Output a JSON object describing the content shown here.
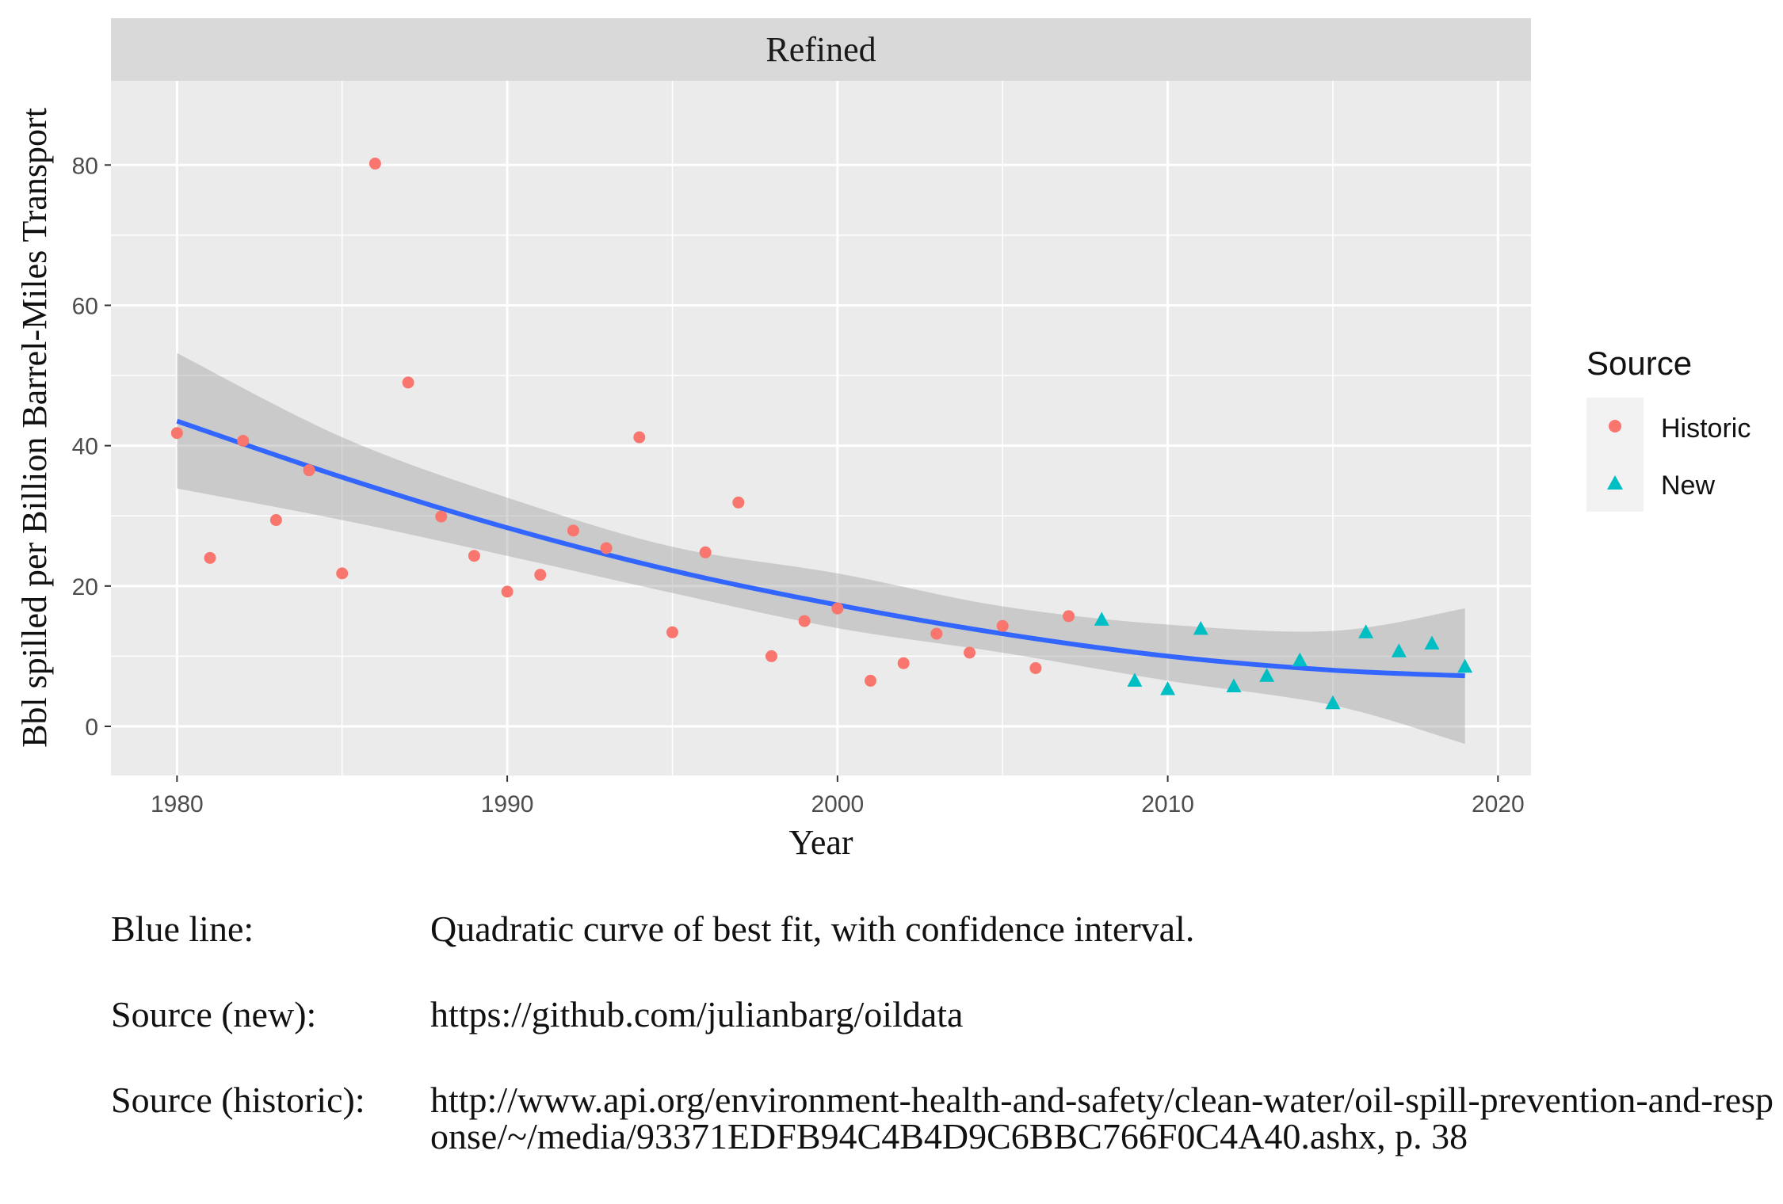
{
  "chart_data": {
    "type": "scatter",
    "facet_title": "Refined",
    "xlabel": "Year",
    "ylabel": "Bbl spilled per Billion Barrel-Miles Transport",
    "xlim": [
      1978,
      2021
    ],
    "ylim": [
      -7,
      92
    ],
    "x_ticks": [
      1980,
      1990,
      2000,
      2010,
      2020
    ],
    "y_ticks": [
      0,
      20,
      40,
      60,
      80
    ],
    "grid": true,
    "legend": {
      "title": "Source",
      "position": "right",
      "entries": [
        {
          "name": "Historic",
          "shape": "circle",
          "color": "#F8766D"
        },
        {
          "name": "New",
          "shape": "triangle",
          "color": "#00BFC4"
        }
      ]
    },
    "series": [
      {
        "name": "Historic",
        "shape": "circle",
        "color": "#F8766D",
        "x": [
          1980,
          1981,
          1982,
          1983,
          1984,
          1985,
          1986,
          1987,
          1988,
          1989,
          1990,
          1991,
          1992,
          1993,
          1994,
          1995,
          1996,
          1997,
          1998,
          1999,
          2000,
          2001,
          2002,
          2003,
          2004,
          2005,
          2006,
          2007
        ],
        "y": [
          41.8,
          24.0,
          40.7,
          29.4,
          36.5,
          21.8,
          80.2,
          49.0,
          29.9,
          24.3,
          19.2,
          21.6,
          27.9,
          25.4,
          41.2,
          13.4,
          24.8,
          31.9,
          10.0,
          15.0,
          16.8,
          6.5,
          9.0,
          13.2,
          10.5,
          14.3,
          8.3,
          15.7
        ]
      },
      {
        "name": "New",
        "shape": "triangle",
        "color": "#00BFC4",
        "x": [
          2008,
          2009,
          2010,
          2011,
          2012,
          2013,
          2014,
          2015,
          2016,
          2017,
          2018,
          2019
        ],
        "y": [
          15.2,
          6.5,
          5.3,
          13.9,
          5.7,
          7.2,
          9.4,
          3.3,
          13.4,
          10.7,
          11.8,
          8.5
        ]
      }
    ],
    "fit": {
      "name": "Blue line",
      "type": "quadratic",
      "color": "#3366FF",
      "band_color": "#999999",
      "x": [
        1980,
        1985,
        1990,
        1995,
        2000,
        2005,
        2010,
        2015,
        2019
      ],
      "y": [
        43.5,
        35.5,
        28.3,
        22.2,
        17.3,
        13.2,
        10.0,
        8.0,
        7.2
      ],
      "lower": [
        33.9,
        29.4,
        24.3,
        19.0,
        14.0,
        10.5,
        6.5,
        3.0,
        -2.5
      ],
      "upper": [
        53.2,
        41.2,
        32.6,
        25.6,
        21.8,
        17.1,
        14.5,
        13.6,
        16.8
      ]
    }
  },
  "notes": [
    {
      "label": "Blue line:",
      "text": "Quadratic curve of best fit, with confidence interval."
    },
    {
      "label": "Source (new):",
      "text": "https://github.com/julianbarg/oildata"
    },
    {
      "label": "Source (historic):",
      "text": "http://www.api.org/environment-health-and-safety/clean-water/oil-spill-prevention-and-response/~/media/93371EDFB94C4B4D9C6BBC766F0C4A40.ashx, p. 38"
    }
  ]
}
